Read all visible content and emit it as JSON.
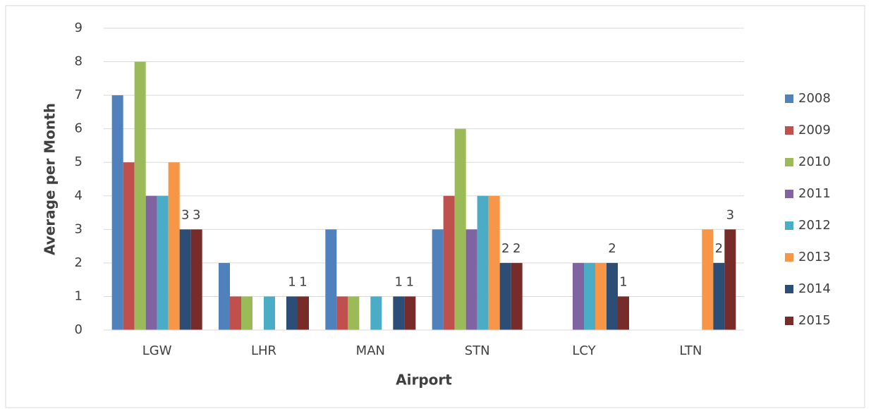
{
  "chart_data": {
    "type": "bar",
    "x_label": "Airport",
    "y_label": "Average per Month",
    "categories": [
      "LGW",
      "LHR",
      "MAN",
      "STN",
      "LCY",
      "LTN"
    ],
    "series": [
      {
        "name": "2008",
        "color": "#4f81bd",
        "values": [
          7,
          2,
          3,
          3,
          0,
          0
        ]
      },
      {
        "name": "2009",
        "color": "#c0504d",
        "values": [
          5,
          1,
          1,
          4,
          0,
          0
        ]
      },
      {
        "name": "2010",
        "color": "#9bbb59",
        "values": [
          8,
          1,
          1,
          6,
          0,
          0
        ]
      },
      {
        "name": "2011",
        "color": "#8064a2",
        "values": [
          4,
          0,
          0,
          3,
          2,
          0
        ]
      },
      {
        "name": "2012",
        "color": "#4bacc6",
        "values": [
          4,
          1,
          1,
          4,
          2,
          0
        ]
      },
      {
        "name": "2013",
        "color": "#f79646",
        "values": [
          5,
          0,
          0,
          4,
          2,
          3
        ]
      },
      {
        "name": "2014",
        "color": "#2c4d75",
        "values": [
          3,
          1,
          1,
          2,
          2,
          2
        ],
        "data_labels": true
      },
      {
        "name": "2015",
        "color": "#772c2a",
        "values": [
          3,
          1,
          1,
          2,
          1,
          3
        ],
        "data_labels": true
      }
    ],
    "ylim": [
      0,
      9
    ],
    "yticks": [
      0,
      1,
      2,
      3,
      4,
      5,
      6,
      7,
      8,
      9
    ],
    "grid": true,
    "legend": "right"
  }
}
